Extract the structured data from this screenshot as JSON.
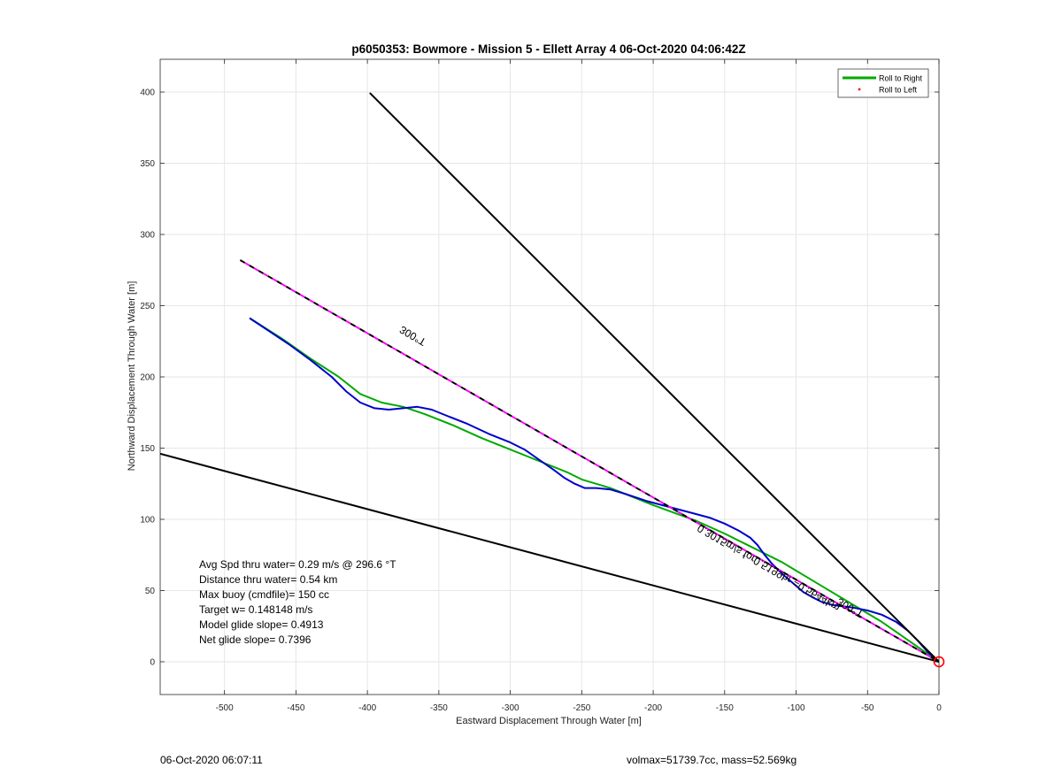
{
  "chart_data": {
    "type": "line",
    "title": "p6050353: Bowmore - Mission 5 - Ellett Array 4 06-Oct-2020 04:06:42Z",
    "xlabel": "Eastward Displacement Through Water [m]",
    "ylabel": "Northward Displacement Through Water [m]",
    "xlim": [
      -545,
      0
    ],
    "ylim": [
      -23,
      423
    ],
    "xticks": [
      -500,
      -450,
      -400,
      -350,
      -300,
      -250,
      -200,
      -150,
      -100,
      -50,
      0
    ],
    "yticks": [
      0,
      50,
      100,
      150,
      200,
      250,
      300,
      350,
      400
    ],
    "grid": true,
    "legend": {
      "position": "top-right",
      "entries": [
        "Roll to Right",
        "Roll to Left"
      ]
    },
    "series": [
      {
        "name": "Roll to Right",
        "color": "#00aa00",
        "points": [
          [
            -482,
            241
          ],
          [
            -460,
            227
          ],
          [
            -440,
            213
          ],
          [
            -420,
            200
          ],
          [
            -405,
            188
          ],
          [
            -390,
            182
          ],
          [
            -375,
            179
          ],
          [
            -360,
            174
          ],
          [
            -340,
            166
          ],
          [
            -320,
            157
          ],
          [
            -300,
            149
          ],
          [
            -280,
            141
          ],
          [
            -260,
            133
          ],
          [
            -250,
            128
          ],
          [
            -230,
            122
          ],
          [
            -200,
            110
          ],
          [
            -170,
            99
          ],
          [
            -150,
            90
          ],
          [
            -130,
            80
          ],
          [
            -110,
            70
          ],
          [
            -95,
            61
          ],
          [
            -80,
            52
          ],
          [
            -60,
            40
          ],
          [
            -40,
            28
          ],
          [
            -20,
            14
          ],
          [
            0,
            0
          ]
        ]
      },
      {
        "name": "Roll to Left",
        "color": "#ff0000",
        "points": [
          [
            -3,
            2
          ],
          [
            -2,
            1
          ],
          [
            -1,
            1
          ]
        ]
      },
      {
        "color": "#0000cc",
        "points": [
          [
            -482,
            241
          ],
          [
            -470,
            233
          ],
          [
            -455,
            223
          ],
          [
            -440,
            212
          ],
          [
            -425,
            200
          ],
          [
            -415,
            190
          ],
          [
            -405,
            182
          ],
          [
            -395,
            178
          ],
          [
            -385,
            177
          ],
          [
            -375,
            178
          ],
          [
            -365,
            179
          ],
          [
            -355,
            177
          ],
          [
            -345,
            173
          ],
          [
            -330,
            167
          ],
          [
            -315,
            160
          ],
          [
            -300,
            154
          ],
          [
            -290,
            149
          ],
          [
            -280,
            142
          ],
          [
            -270,
            135
          ],
          [
            -262,
            129
          ],
          [
            -255,
            125
          ],
          [
            -248,
            122
          ],
          [
            -240,
            122
          ],
          [
            -230,
            121
          ],
          [
            -220,
            118
          ],
          [
            -205,
            113
          ],
          [
            -190,
            109
          ],
          [
            -175,
            105
          ],
          [
            -160,
            101
          ],
          [
            -150,
            97
          ],
          [
            -140,
            92
          ],
          [
            -132,
            87
          ],
          [
            -127,
            82
          ],
          [
            -122,
            75
          ],
          [
            -117,
            69
          ],
          [
            -110,
            62
          ],
          [
            -102,
            55
          ],
          [
            -95,
            49
          ],
          [
            -88,
            45
          ],
          [
            -82,
            42
          ],
          [
            -75,
            40
          ],
          [
            -68,
            39
          ],
          [
            -60,
            38
          ],
          [
            -50,
            36
          ],
          [
            -40,
            33
          ],
          [
            -30,
            28
          ],
          [
            -22,
            22
          ],
          [
            -15,
            15
          ],
          [
            -8,
            7
          ],
          [
            0,
            0
          ]
        ]
      },
      {
        "color": "#000000",
        "style": "dashed",
        "points": [
          [
            -489,
            282
          ],
          [
            0,
            0
          ]
        ]
      },
      {
        "color": "#ff00ff",
        "style": "dashed",
        "points": [
          [
            -489,
            282
          ],
          [
            0,
            0
          ]
        ]
      },
      {
        "color": "#000000",
        "points": [
          [
            -398,
            399
          ],
          [
            0,
            0
          ]
        ]
      },
      {
        "color": "#000000",
        "points": [
          [
            -545,
            146
          ],
          [
            0,
            0
          ]
        ]
      }
    ],
    "annotations": [
      {
        "text": "300°T",
        "x": -367,
        "y": 231,
        "rotation_deg": 30
      },
      {
        "text": "300°T",
        "x": -61,
        "y": 40,
        "rotation_deg": 30
      },
      {
        "text": "0.3015m/s for0.5199hr =0.5644km",
        "x": -118,
        "y": 68,
        "rotation_deg": 30
      }
    ],
    "origin_marker": {
      "x": 0,
      "y": 0,
      "color": "#ff0000"
    },
    "stats_lines": [
      "Avg Spd thru water=  0.29 m/s @ 296.6 °T",
      "Distance thru water=  0.54 km",
      "Max buoy (cmdfile)= 150 cc",
      "Target w= 0.148148 m/s",
      "Model glide slope= 0.4913",
      "Net glide slope= 0.7396"
    ]
  },
  "footer": {
    "left": "06-Oct-2020 06:07:11",
    "right": "volmax=51739.7cc, mass=52.569kg"
  }
}
